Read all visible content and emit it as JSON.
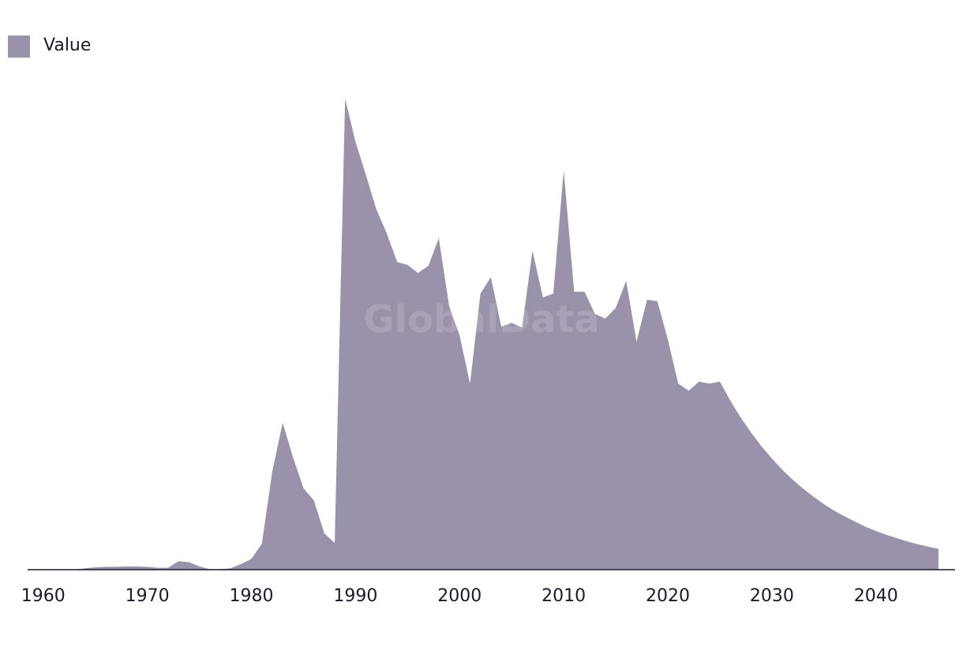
{
  "chart_data": {
    "type": "area",
    "watermark": "GlobalData",
    "x": [
      1960,
      1961,
      1962,
      1963,
      1964,
      1965,
      1966,
      1967,
      1968,
      1969,
      1970,
      1971,
      1972,
      1973,
      1974,
      1975,
      1976,
      1977,
      1978,
      1979,
      1980,
      1981,
      1982,
      1983,
      1984,
      1985,
      1986,
      1987,
      1988,
      1989,
      1990,
      1991,
      1992,
      1993,
      1994,
      1995,
      1996,
      1997,
      1998,
      1999,
      2000,
      2001,
      2002,
      2003,
      2004,
      2005,
      2006,
      2007,
      2008,
      2009,
      2010,
      2011,
      2012,
      2013,
      2014,
      2015,
      2016,
      2017,
      2018,
      2019,
      2020,
      2021,
      2022,
      2023,
      2024,
      2025,
      2026,
      2027,
      2028,
      2029,
      2030,
      2031,
      2032,
      2033,
      2034,
      2035,
      2036,
      2037,
      2038,
      2039,
      2040,
      2041,
      2042,
      2043,
      2044,
      2045,
      2046
    ],
    "series": [
      {
        "name": "Value",
        "color": "#9a91aa",
        "values": [
          0,
          0,
          0,
          0,
          0.3,
          0.5,
          0.6,
          0.6,
          0.7,
          0.7,
          0.6,
          0.4,
          0.4,
          1.8,
          1.6,
          0.7,
          0.1,
          0.1,
          0.3,
          1.2,
          2.3,
          5.5,
          20.8,
          31.2,
          23.8,
          17.3,
          14.7,
          7.7,
          5.7,
          100,
          90.8,
          83.8,
          76.5,
          71.4,
          65.3,
          64.7,
          63,
          64.5,
          70.4,
          55.9,
          49.7,
          39.5,
          58.6,
          62.1,
          51.6,
          52.4,
          51.4,
          67.7,
          57.8,
          58.6,
          84.8,
          59,
          59,
          54.3,
          53.3,
          55.6,
          61.3,
          48.4,
          57.3,
          57,
          48.9,
          39.5,
          38,
          39.9,
          39.5,
          39.9,
          35.9,
          32.3,
          29.1,
          26.2,
          23.6,
          21.2,
          19.1,
          17.2,
          15.5,
          13.9,
          12.5,
          11.3,
          10.2,
          9.1,
          8.2,
          7.4,
          6.7,
          6.0,
          5.4,
          4.9,
          4.4
        ]
      }
    ],
    "xlim": [
      1958.5,
      2047.6
    ],
    "xticks": [
      1960,
      1970,
      1980,
      1990,
      2000,
      2010,
      2020,
      2030,
      2040
    ],
    "legend": "top-left"
  }
}
